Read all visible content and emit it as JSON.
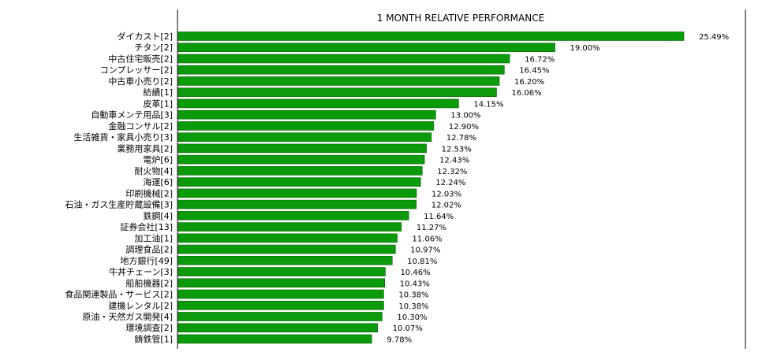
{
  "chart_data": {
    "type": "bar",
    "orientation": "horizontal",
    "title": "1 MONTH RELATIVE PERFORMANCE",
    "xlabel": "",
    "ylabel": "",
    "bar_color": "#0a9a0a",
    "bar_edge_color": "#006400",
    "grid": false,
    "legend": "none",
    "xlim": [
      0,
      25.49
    ],
    "categories": [
      "ダイカスト[2]",
      "チタン[2]",
      "中古住宅販売[2]",
      "コンプレッサー[2]",
      "中古車小売り[2]",
      "紡績[1]",
      "皮革[1]",
      "自動車メンテ用品[3]",
      "金融コンサル[2]",
      "生活雑貨・家具小売り[3]",
      "業務用家具[2]",
      "電炉[6]",
      "耐火物[4]",
      "海運[6]",
      "印刷機械[2]",
      "石油・ガス生産貯蔵設備[3]",
      "鉄鋼[4]",
      "証券会社[13]",
      "加工油[1]",
      "調理食品[2]",
      "地方銀行[49]",
      "牛丼チェーン[3]",
      "船舶機器[2]",
      "食品関連製品・サービス[2]",
      "建機レンタル[2]",
      "原油・天然ガス開発[4]",
      "環境調査[2]",
      "鋳鉄管[1]"
    ],
    "values": [
      25.49,
      19.0,
      16.72,
      16.45,
      16.2,
      16.06,
      14.15,
      13.0,
      12.9,
      12.78,
      12.53,
      12.43,
      12.32,
      12.24,
      12.03,
      12.02,
      11.64,
      11.27,
      11.06,
      10.97,
      10.81,
      10.46,
      10.43,
      10.38,
      10.38,
      10.3,
      10.07,
      9.78
    ],
    "value_labels": [
      "25.49%",
      "19.00%",
      "16.72%",
      "16.45%",
      "16.20%",
      "16.06%",
      "14.15%",
      "13.00%",
      "12.90%",
      "12.78%",
      "12.53%",
      "12.43%",
      "12.32%",
      "12.24%",
      "12.03%",
      "12.02%",
      "11.64%",
      "11.27%",
      "11.06%",
      "10.97%",
      "10.81%",
      "10.46%",
      "10.43%",
      "10.38%",
      "10.38%",
      "10.30%",
      "10.07%",
      "9.78%"
    ]
  }
}
